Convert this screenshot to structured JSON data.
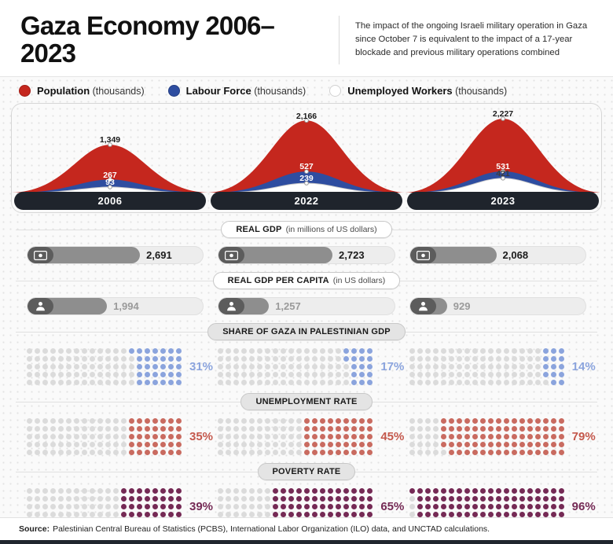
{
  "header": {
    "title": "Gaza Economy 2006–2023",
    "description": "The impact of the ongoing Israeli military operation in Gaza since October 7 is equivalent to the impact of a 17-year blockade and previous military operations combined"
  },
  "legend": [
    {
      "name": "Population",
      "unit": "(thousands)",
      "color": "#c5271e"
    },
    {
      "name": "Labour Force",
      "unit": "(thousands)",
      "color": "#2e4da0"
    },
    {
      "name": "Unemployed Workers",
      "unit": "(thousands)",
      "color": "#ffffff"
    }
  ],
  "chart_data": [
    {
      "type": "area",
      "title": "Population, Labour Force and Unemployed Workers (thousands)",
      "categories": [
        "2006",
        "2022",
        "2023"
      ],
      "legend_position": "top-left",
      "series": [
        {
          "name": "Population (thousands)",
          "color": "#c5271e",
          "values": [
            1349,
            2166,
            2227
          ],
          "labels": [
            "1,349",
            "2,166",
            "2,227"
          ],
          "label_colors": [
            "#1b1b1b",
            "#1b1b1b",
            "#1b1b1b"
          ]
        },
        {
          "name": "Labour Force (thousands)",
          "color": "#2e4da0",
          "values": [
            267,
            527,
            531
          ],
          "labels": [
            "267",
            "527",
            "531"
          ],
          "label_colors": [
            "#ffffff",
            "#ffffff",
            "#ffffff"
          ]
        },
        {
          "name": "Unemployed Workers (thousands)",
          "color": "#ffffff",
          "values": [
            93,
            239,
            421
          ],
          "labels": [
            "93",
            "239",
            "421"
          ],
          "label_colors": [
            "#ffffff",
            "#ffffff",
            "#3c3c3c"
          ]
        }
      ]
    },
    {
      "type": "bar",
      "title": "REAL GDP",
      "unit": "(in millions of US dollars)",
      "categories": [
        "2006",
        "2022",
        "2023"
      ],
      "values": [
        2691,
        2723,
        2068
      ],
      "labels": [
        "2,691",
        "2,723",
        "2,068"
      ],
      "scale_max": 4200,
      "icon": "banknote-icon",
      "value_color": "#1b1b1b"
    },
    {
      "type": "bar",
      "title": "REAL GDP PER CAPITA",
      "unit": "(in US dollars)",
      "categories": [
        "2006",
        "2022",
        "2023"
      ],
      "values": [
        1994,
        1257,
        929
      ],
      "labels": [
        "1,994",
        "1,257",
        "929"
      ],
      "scale_max": 4400,
      "icon": "person-icon",
      "value_color": "#9a9a9a"
    },
    {
      "type": "waffle",
      "title": "SHARE OF GAZA IN PALESTINIAN GDP",
      "categories": [
        "2006",
        "2022",
        "2023"
      ],
      "values_pct": [
        31,
        17,
        14
      ],
      "labels": [
        "31%",
        "17%",
        "14%"
      ],
      "fill_color": "#8ba4dd",
      "label_color": "#8ba4dd",
      "empty_color": "#dbdbdb"
    },
    {
      "type": "waffle",
      "title": "UNEMPLOYMENT RATE",
      "categories": [
        "2006",
        "2022",
        "2023"
      ],
      "values_pct": [
        35,
        45,
        79
      ],
      "labels": [
        "35%",
        "45%",
        "79%"
      ],
      "fill_color": "#c96b60",
      "label_color": "#c4584c",
      "empty_color": "#dbdbdb"
    },
    {
      "type": "waffle",
      "title": "POVERTY RATE",
      "categories": [
        "2006",
        "2022",
        "2023"
      ],
      "values_pct": [
        39,
        65,
        96
      ],
      "labels": [
        "39%",
        "65%",
        "96%"
      ],
      "fill_color": "#752a55",
      "label_color": "#752a55",
      "empty_color": "#dbdbdb"
    }
  ],
  "footer": {
    "source_label": "Source:",
    "source_text": "Palestinian Central Bureau of Statistics (PCBS), International Labor Organization (ILO) data, and UNCTAD calculations."
  }
}
